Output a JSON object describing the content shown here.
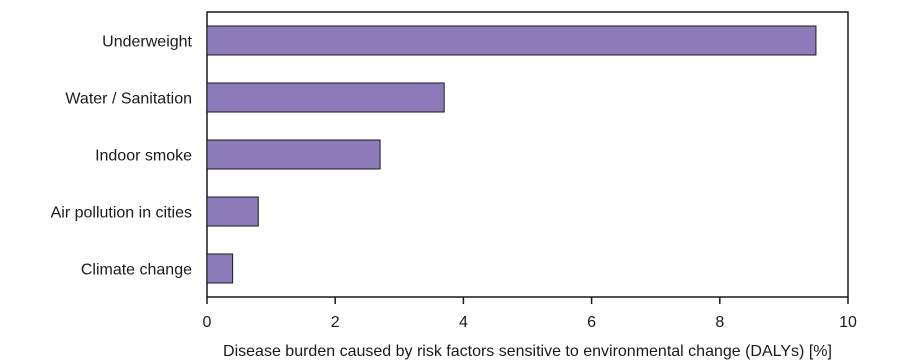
{
  "chart_data": {
    "type": "bar",
    "orientation": "horizontal",
    "title": "",
    "xlabel": "Disease burden caused by risk factors sensitive to environmental change (DALYs) [%]",
    "ylabel": "",
    "xlim": [
      0,
      10
    ],
    "xticks": [
      0,
      2,
      4,
      6,
      8,
      10
    ],
    "xtick_labels": [
      "0",
      "2",
      "4",
      "6",
      "8",
      "10"
    ],
    "categories": [
      "Underweight",
      "Water / Sanitation",
      "Indoor smoke",
      "Air pollution in cities",
      "Climate change"
    ],
    "values": [
      9.5,
      3.7,
      2.7,
      0.8,
      0.4
    ],
    "grid": false,
    "bar_color": "#8c7bb8"
  }
}
